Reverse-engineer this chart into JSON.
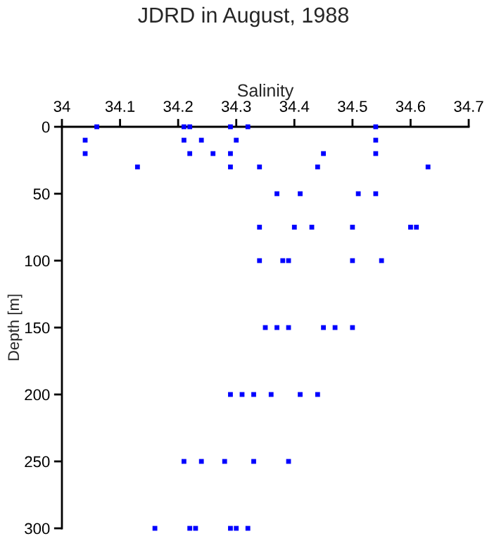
{
  "chart_data": {
    "type": "scatter",
    "title": "JDRD in August, 1988",
    "xlabel": "Salinity",
    "ylabel": "Depth [m]",
    "xlim": [
      34,
      34.7
    ],
    "xticks": [
      34,
      34.1,
      34.2,
      34.3,
      34.4,
      34.5,
      34.6,
      34.7
    ],
    "ylim": [
      300,
      0
    ],
    "yticks": [
      0,
      50,
      100,
      150,
      200,
      250,
      300
    ],
    "grid": false,
    "marker": "square",
    "series": [
      {
        "color": "#0000ff",
        "x": [
          34.06,
          34.21,
          34.22,
          34.29,
          34.32,
          34.54,
          34.04,
          34.21,
          34.24,
          34.3,
          34.54,
          34.04,
          34.22,
          34.26,
          34.29,
          34.45,
          34.54,
          34.13,
          34.29,
          34.34,
          34.44,
          34.63,
          34.37,
          34.41,
          34.51,
          34.54,
          34.34,
          34.4,
          34.43,
          34.5,
          34.6,
          34.61,
          34.34,
          34.38,
          34.39,
          34.5,
          34.55,
          34.35,
          34.37,
          34.39,
          34.45,
          34.47,
          34.5,
          34.29,
          34.31,
          34.33,
          34.36,
          34.41,
          34.44,
          34.21,
          34.24,
          34.28,
          34.33,
          34.39,
          34.16,
          34.22,
          34.23,
          34.29,
          34.3,
          34.32
        ],
        "values": [
          0,
          0,
          0,
          0,
          0,
          0,
          10,
          10,
          10,
          10,
          10,
          20,
          20,
          20,
          20,
          20,
          20,
          30,
          30,
          30,
          30,
          30,
          50,
          50,
          50,
          50,
          75,
          75,
          75,
          75,
          75,
          75,
          100,
          100,
          100,
          100,
          100,
          150,
          150,
          150,
          150,
          150,
          150,
          200,
          200,
          200,
          200,
          200,
          200,
          250,
          250,
          250,
          250,
          250,
          300,
          300,
          300,
          300,
          300,
          300
        ]
      }
    ]
  }
}
